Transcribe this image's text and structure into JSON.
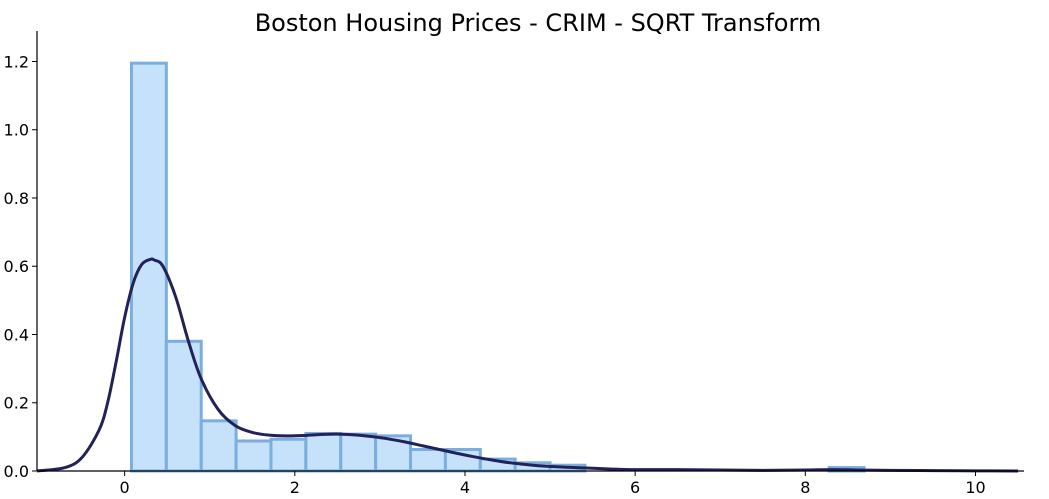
{
  "chart_data": {
    "type": "bar",
    "title": "Boston Housing Prices - CRIM - SQRT Transform",
    "xlabel": "",
    "ylabel": "",
    "xlim": [
      -1.03,
      10.57
    ],
    "ylim": [
      0,
      1.26
    ],
    "x_ticks": [
      0,
      2,
      4,
      6,
      8,
      10
    ],
    "y_ticks": [
      0.0,
      0.2,
      0.4,
      0.6,
      0.8,
      1.0,
      1.2
    ],
    "x_tick_labels": [
      "0",
      "2",
      "4",
      "6",
      "8",
      "10"
    ],
    "y_tick_labels": [
      "0.0",
      "0.2",
      "0.4",
      "0.6",
      "0.8",
      "1.0",
      "1.2"
    ],
    "grid": false,
    "histogram": {
      "bin_edges": [
        0.08,
        0.49,
        0.9,
        1.31,
        1.72,
        2.13,
        2.54,
        2.95,
        3.36,
        3.77,
        4.18,
        4.59,
        5.0,
        5.41,
        5.82,
        6.23,
        6.64,
        7.05,
        7.46,
        7.87,
        8.28,
        8.69
      ],
      "values": [
        1.195,
        0.38,
        0.147,
        0.088,
        0.093,
        0.11,
        0.108,
        0.103,
        0.063,
        0.063,
        0.035,
        0.024,
        0.017,
        0.0,
        0.0,
        0.0,
        0.0,
        0.0,
        0.0,
        0.0,
        0.01
      ],
      "fill_color": "#c6e2fb",
      "edge_color": "#7aaedf"
    },
    "kde": {
      "x": [
        -1.03,
        -0.7,
        -0.5,
        -0.3,
        -0.2,
        -0.1,
        0.0,
        0.1,
        0.2,
        0.3,
        0.35,
        0.45,
        0.6,
        0.75,
        0.9,
        1.1,
        1.3,
        1.5,
        1.7,
        1.9,
        2.1,
        2.3,
        2.5,
        2.7,
        2.9,
        3.1,
        3.3,
        3.5,
        3.7,
        3.9,
        4.1,
        4.3,
        4.5,
        4.8,
        5.1,
        5.4,
        5.7,
        6.0,
        6.5,
        7.0,
        7.5,
        8.0,
        8.3,
        8.6,
        9.0,
        9.5,
        10.0,
        10.5
      ],
      "y": [
        0.0,
        0.01,
        0.04,
        0.12,
        0.2,
        0.32,
        0.45,
        0.55,
        0.605,
        0.62,
        0.618,
        0.6,
        0.51,
        0.38,
        0.27,
        0.18,
        0.133,
        0.113,
        0.105,
        0.103,
        0.104,
        0.107,
        0.108,
        0.106,
        0.101,
        0.094,
        0.085,
        0.074,
        0.063,
        0.052,
        0.042,
        0.033,
        0.025,
        0.017,
        0.012,
        0.009,
        0.006,
        0.004,
        0.004,
        0.003,
        0.002,
        0.003,
        0.004,
        0.003,
        0.002,
        0.001,
        0.0005,
        0.0
      ],
      "color": "#22225a"
    }
  }
}
